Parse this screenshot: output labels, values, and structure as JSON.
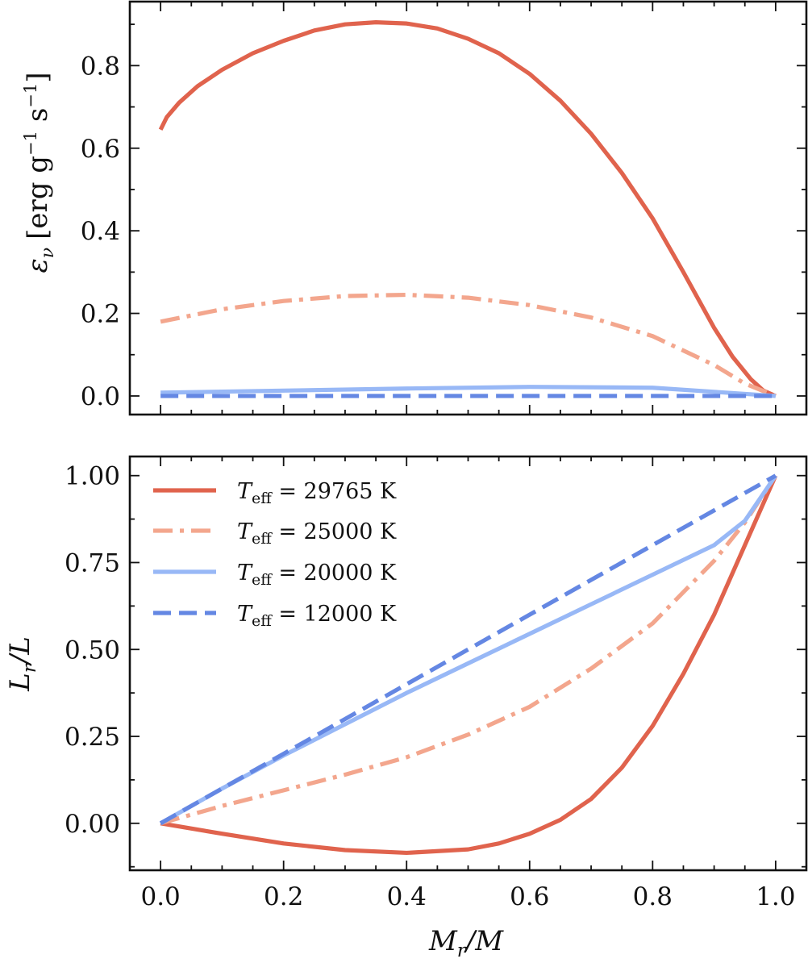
{
  "chart_data": [
    {
      "type": "line",
      "panel": "top",
      "ylabel_main": "ε",
      "ylabel_sub": "ν",
      "ylabel_units": "[erg g",
      "ylabel_units_sup1": "−1",
      "ylabel_units_mid": " s",
      "ylabel_units_sup2": "−1",
      "ylabel_units_end": "]",
      "xlim": [
        -0.05,
        1.05
      ],
      "ylim": [
        -0.045,
        0.955
      ],
      "xticks": [
        "0.0",
        "0.2",
        "0.4",
        "0.6",
        "0.8",
        "1.0"
      ],
      "xtick_values": [
        0.0,
        0.2,
        0.4,
        0.6,
        0.8,
        1.0
      ],
      "yticks": [
        "0.0",
        "0.2",
        "0.4",
        "0.6",
        "0.8"
      ],
      "ytick_values": [
        0.0,
        0.2,
        0.4,
        0.6,
        0.8
      ],
      "series": [
        {
          "name": "29765",
          "x": [
            0.0,
            0.01,
            0.03,
            0.06,
            0.1,
            0.15,
            0.2,
            0.25,
            0.3,
            0.35,
            0.4,
            0.45,
            0.5,
            0.55,
            0.6,
            0.65,
            0.7,
            0.75,
            0.8,
            0.85,
            0.9,
            0.93,
            0.96,
            0.98,
            1.0
          ],
          "y": [
            0.645,
            0.675,
            0.71,
            0.75,
            0.79,
            0.83,
            0.86,
            0.885,
            0.9,
            0.905,
            0.902,
            0.89,
            0.865,
            0.83,
            0.78,
            0.715,
            0.635,
            0.54,
            0.43,
            0.3,
            0.165,
            0.095,
            0.04,
            0.013,
            0.0
          ]
        },
        {
          "name": "25000",
          "x": [
            0.0,
            0.05,
            0.1,
            0.2,
            0.3,
            0.4,
            0.5,
            0.6,
            0.7,
            0.8,
            0.9,
            0.95,
            1.0
          ],
          "y": [
            0.18,
            0.195,
            0.21,
            0.23,
            0.242,
            0.245,
            0.238,
            0.22,
            0.19,
            0.145,
            0.075,
            0.03,
            0.0
          ]
        },
        {
          "name": "20000",
          "x": [
            0.0,
            0.2,
            0.4,
            0.6,
            0.8,
            0.9,
            1.0
          ],
          "y": [
            0.008,
            0.013,
            0.018,
            0.022,
            0.02,
            0.01,
            0.0
          ]
        },
        {
          "name": "12000",
          "x": [
            0.0,
            0.5,
            1.0
          ],
          "y": [
            0.0,
            0.0,
            0.0
          ]
        }
      ]
    },
    {
      "type": "line",
      "panel": "bottom",
      "ylabel_main": "L",
      "ylabel_sub": "r",
      "ylabel_tail": "/L",
      "xlabel_main": "M",
      "xlabel_sub": "r",
      "xlabel_tail": "/M",
      "xlim": [
        -0.05,
        1.05
      ],
      "ylim": [
        -0.135,
        1.055
      ],
      "xticks": [
        "0.0",
        "0.2",
        "0.4",
        "0.6",
        "0.8",
        "1.0"
      ],
      "xtick_values": [
        0.0,
        0.2,
        0.4,
        0.6,
        0.8,
        1.0
      ],
      "yticks": [
        "0.00",
        "0.25",
        "0.50",
        "0.75",
        "1.00"
      ],
      "ytick_values": [
        0.0,
        0.25,
        0.5,
        0.75,
        1.0
      ],
      "series": [
        {
          "name": "29765",
          "x": [
            0.0,
            0.1,
            0.2,
            0.3,
            0.4,
            0.5,
            0.55,
            0.6,
            0.65,
            0.7,
            0.75,
            0.8,
            0.85,
            0.9,
            0.95,
            1.0
          ],
          "y": [
            0.0,
            -0.03,
            -0.058,
            -0.077,
            -0.085,
            -0.075,
            -0.058,
            -0.03,
            0.01,
            0.07,
            0.16,
            0.28,
            0.43,
            0.6,
            0.8,
            1.0
          ]
        },
        {
          "name": "25000",
          "x": [
            0.0,
            0.1,
            0.2,
            0.3,
            0.4,
            0.5,
            0.6,
            0.7,
            0.8,
            0.9,
            0.95,
            1.0
          ],
          "y": [
            0.0,
            0.05,
            0.095,
            0.14,
            0.19,
            0.255,
            0.335,
            0.445,
            0.575,
            0.755,
            0.865,
            1.0
          ]
        },
        {
          "name": "20000",
          "x": [
            0.0,
            0.1,
            0.2,
            0.3,
            0.4,
            0.5,
            0.6,
            0.7,
            0.8,
            0.9,
            0.95,
            1.0
          ],
          "y": [
            0.0,
            0.1,
            0.195,
            0.285,
            0.375,
            0.46,
            0.545,
            0.63,
            0.715,
            0.8,
            0.87,
            1.0
          ]
        },
        {
          "name": "12000",
          "x": [
            0.0,
            0.1,
            0.2,
            0.3,
            0.4,
            0.5,
            0.6,
            0.7,
            0.8,
            0.9,
            1.0
          ],
          "y": [
            0.0,
            0.1,
            0.2,
            0.3,
            0.4,
            0.5,
            0.6,
            0.7,
            0.8,
            0.9,
            1.0
          ]
        }
      ]
    }
  ],
  "legend": {
    "position": "upper-left",
    "entries": [
      {
        "series": "29765",
        "main": "T",
        "sub": "eff",
        "eq": " = 29765 K"
      },
      {
        "series": "25000",
        "main": "T",
        "sub": "eff",
        "eq": " = 25000 K"
      },
      {
        "series": "20000",
        "main": "T",
        "sub": "eff",
        "eq": " = 20000 K"
      },
      {
        "series": "12000",
        "main": "T",
        "sub": "eff",
        "eq": " = 12000 K"
      }
    ]
  },
  "styles": {
    "29765": {
      "color": "#e0634d",
      "dash": "solid"
    },
    "25000": {
      "color": "#f3a68d",
      "dash": "dashdot"
    },
    "20000": {
      "color": "#98b8f6",
      "dash": "solid"
    },
    "12000": {
      "color": "#6487e3",
      "dash": "dashed"
    }
  }
}
